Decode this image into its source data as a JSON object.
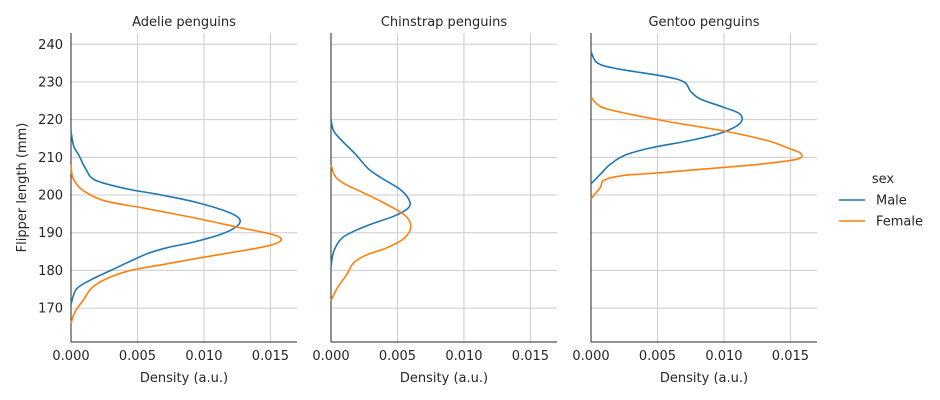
{
  "chart_data": {
    "type": "line",
    "ylabel": "Flipper length (mm)",
    "xlabel": "Density (a.u.)",
    "xlim": [
      0,
      0.017
    ],
    "ylim": [
      161,
      243
    ],
    "xticks": [
      0.0,
      0.005,
      0.01,
      0.015
    ],
    "xtick_labels": [
      "0.000",
      "0.005",
      "0.010",
      "0.015"
    ],
    "yticks": [
      170,
      180,
      190,
      200,
      210,
      220,
      230,
      240
    ],
    "ytick_labels": [
      "170",
      "180",
      "190",
      "200",
      "210",
      "220",
      "230",
      "240"
    ],
    "grid": true,
    "legend": {
      "title": "sex",
      "placement": "right",
      "entries": [
        {
          "label": "Male",
          "color": "#1f77b4"
        },
        {
          "label": "Female",
          "color": "#ff7f0e"
        }
      ]
    },
    "panels": [
      {
        "title": "Adelie penguins",
        "series": [
          {
            "name": "Male",
            "color": "#1f77b4",
            "points": [
              [
                0.0,
                171
              ],
              [
                0.0004,
                175
              ],
              [
                0.0015,
                177.5
              ],
              [
                0.003,
                180
              ],
              [
                0.0045,
                182.5
              ],
              [
                0.0058,
                184.5
              ],
              [
                0.0072,
                186
              ],
              [
                0.0092,
                187.5
              ],
              [
                0.0112,
                189.5
              ],
              [
                0.0124,
                191.5
              ],
              [
                0.0127,
                193.5
              ],
              [
                0.0118,
                195.5
              ],
              [
                0.0095,
                198
              ],
              [
                0.0068,
                200
              ],
              [
                0.004,
                201.8
              ],
              [
                0.0018,
                204
              ],
              [
                0.0011,
                207
              ],
              [
                0.0006,
                210.5
              ],
              [
                0.0002,
                213
              ],
              [
                0.0,
                217
              ]
            ]
          },
          {
            "name": "Female",
            "color": "#ff7f0e",
            "points": [
              [
                0.0,
                166
              ],
              [
                0.0003,
                169
              ],
              [
                0.0009,
                172
              ],
              [
                0.0016,
                175.5
              ],
              [
                0.0028,
                178
              ],
              [
                0.0045,
                180
              ],
              [
                0.0068,
                181.5
              ],
              [
                0.0095,
                183.2
              ],
              [
                0.0125,
                185
              ],
              [
                0.0148,
                186.5
              ],
              [
                0.0158,
                188
              ],
              [
                0.0152,
                189.5
              ],
              [
                0.0125,
                191.5
              ],
              [
                0.0092,
                194
              ],
              [
                0.0055,
                196.5
              ],
              [
                0.0025,
                198.5
              ],
              [
                0.001,
                201
              ],
              [
                0.0004,
                203
              ],
              [
                0.0001,
                205
              ],
              [
                0.0,
                208
              ]
            ]
          }
        ]
      },
      {
        "title": "Chinstrap penguins",
        "series": [
          {
            "name": "Male",
            "color": "#1f77b4",
            "points": [
              [
                0.0,
                181
              ],
              [
                0.0002,
                185
              ],
              [
                0.0008,
                188.5
              ],
              [
                0.0018,
                190.5
              ],
              [
                0.0032,
                192.5
              ],
              [
                0.0048,
                194.5
              ],
              [
                0.0058,
                196.5
              ],
              [
                0.0059,
                198.5
              ],
              [
                0.0052,
                201.5
              ],
              [
                0.0038,
                204.5
              ],
              [
                0.0028,
                207
              ],
              [
                0.0018,
                211
              ],
              [
                0.0008,
                214.5
              ],
              [
                0.0002,
                217
              ],
              [
                0.0,
                220
              ]
            ]
          },
          {
            "name": "Female",
            "color": "#ff7f0e",
            "points": [
              [
                0.0,
                172
              ],
              [
                0.0005,
                175.5
              ],
              [
                0.0012,
                179
              ],
              [
                0.0017,
                182
              ],
              [
                0.0026,
                184
              ],
              [
                0.0042,
                186
              ],
              [
                0.0055,
                188.5
              ],
              [
                0.006,
                191.5
              ],
              [
                0.0056,
                194.5
              ],
              [
                0.0042,
                197.5
              ],
              [
                0.0025,
                200.5
              ],
              [
                0.001,
                203
              ],
              [
                0.0003,
                205
              ],
              [
                0.0,
                208
              ]
            ]
          }
        ]
      },
      {
        "title": "Gentoo penguins",
        "series": [
          {
            "name": "Male",
            "color": "#1f77b4",
            "points": [
              [
                0.0,
                203
              ],
              [
                0.0007,
                205.5
              ],
              [
                0.0014,
                208
              ],
              [
                0.0025,
                210.5
              ],
              [
                0.0045,
                212.5
              ],
              [
                0.0075,
                214.5
              ],
              [
                0.0098,
                216.5
              ],
              [
                0.0112,
                219
              ],
              [
                0.0112,
                221.5
              ],
              [
                0.0098,
                223.5
              ],
              [
                0.0082,
                225.5
              ],
              [
                0.0075,
                227.5
              ],
              [
                0.007,
                230
              ],
              [
                0.0055,
                231.5
              ],
              [
                0.002,
                233.5
              ],
              [
                0.0005,
                235
              ],
              [
                0.0,
                238
              ]
            ]
          },
          {
            "name": "Female",
            "color": "#ff7f0e",
            "points": [
              [
                0.0,
                199
              ],
              [
                0.0007,
                202
              ],
              [
                0.001,
                204
              ],
              [
                0.0025,
                205.2
              ],
              [
                0.0055,
                206
              ],
              [
                0.0095,
                207.2
              ],
              [
                0.013,
                208.3
              ],
              [
                0.0155,
                209.5
              ],
              [
                0.0158,
                211
              ],
              [
                0.0148,
                212.5
              ],
              [
                0.0132,
                214.5
              ],
              [
                0.01,
                217
              ],
              [
                0.0058,
                219.5
              ],
              [
                0.0022,
                222
              ],
              [
                0.0007,
                223.5
              ],
              [
                0.0,
                226
              ]
            ]
          }
        ]
      }
    ]
  }
}
